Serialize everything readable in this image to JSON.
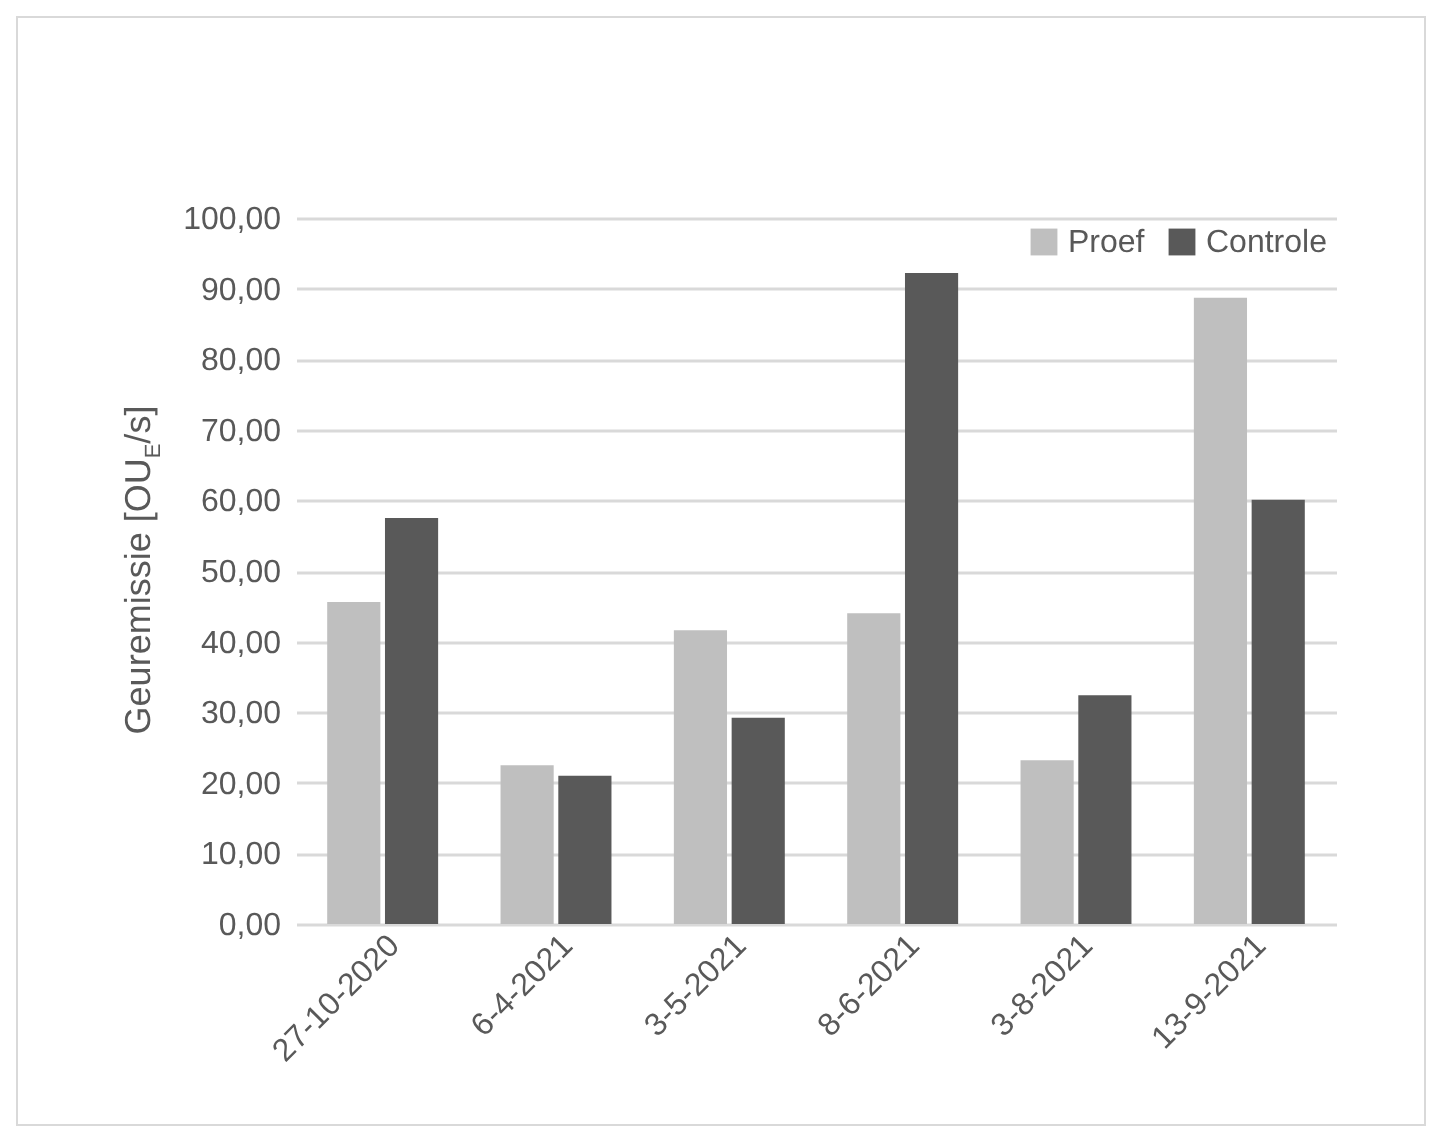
{
  "chart_data": {
    "type": "bar",
    "ylabel": "Geuremissie [OU$_{E}$/s]",
    "categories": [
      "27-10-2020",
      "6-4-2021",
      "3-5-2021",
      "8-6-2021",
      "3-8-2021",
      "13-9-2021"
    ],
    "series": [
      {
        "name": "Proef",
        "color": "#bfbfbf",
        "values": [
          45.6,
          22.5,
          41.6,
          44.0,
          23.2,
          88.7
        ]
      },
      {
        "name": "Controle",
        "color": "#595959",
        "values": [
          57.5,
          21.0,
          29.2,
          92.2,
          32.4,
          60.1
        ]
      }
    ],
    "ylim": [
      0,
      100
    ],
    "yticks": [
      {
        "value": 0,
        "label": "0,00"
      },
      {
        "value": 10,
        "label": "10,00"
      },
      {
        "value": 20,
        "label": "20,00"
      },
      {
        "value": 30,
        "label": "30,00"
      },
      {
        "value": 40,
        "label": "40,00"
      },
      {
        "value": 50,
        "label": "50,00"
      },
      {
        "value": 60,
        "label": "60,00"
      },
      {
        "value": 70,
        "label": "70,00"
      },
      {
        "value": 80,
        "label": "80,00"
      },
      {
        "value": 90,
        "label": "90,00"
      },
      {
        "value": 100,
        "label": "100,00"
      }
    ],
    "grid": "y",
    "legend": "top right"
  }
}
